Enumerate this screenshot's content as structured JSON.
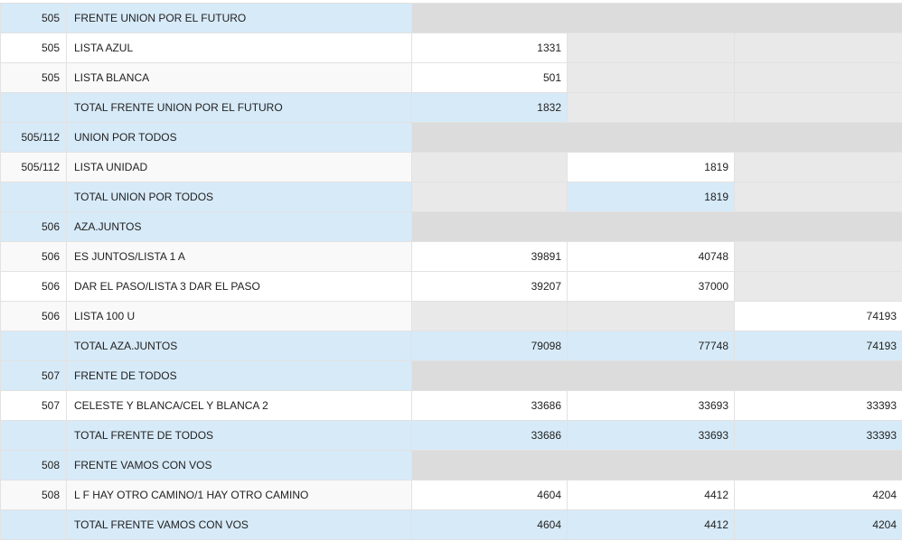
{
  "rows": [
    {
      "type": "header",
      "code": "505",
      "name": "FRENTE UNION POR EL FUTURO"
    },
    {
      "type": "list",
      "alt": false,
      "code": "505",
      "name": "LISTA AZUL",
      "v": [
        "1331",
        "",
        ""
      ],
      "bg": [
        "white",
        "grey",
        "grey"
      ]
    },
    {
      "type": "list",
      "alt": true,
      "code": "505",
      "name": "LISTA BLANCA",
      "v": [
        "501",
        "",
        ""
      ],
      "bg": [
        "white",
        "grey",
        "grey"
      ]
    },
    {
      "type": "total",
      "code": "",
      "name": "TOTAL FRENTE UNION POR EL FUTURO",
      "v": [
        "1832",
        "",
        ""
      ],
      "bg": [
        "blue",
        "grey",
        "grey"
      ]
    },
    {
      "type": "header",
      "code": "505/112",
      "name": "UNION POR TODOS"
    },
    {
      "type": "list",
      "alt": true,
      "code": "505/112",
      "name": "LISTA UNIDAD",
      "v": [
        "",
        "1819",
        ""
      ],
      "bg": [
        "grey",
        "white",
        "grey"
      ]
    },
    {
      "type": "total",
      "code": "",
      "name": "TOTAL UNION POR TODOS",
      "v": [
        "",
        "1819",
        ""
      ],
      "bg": [
        "grey",
        "blue",
        "grey"
      ]
    },
    {
      "type": "header",
      "code": "506",
      "name": "AZA.JUNTOS"
    },
    {
      "type": "list",
      "alt": true,
      "code": "506",
      "name": "ES JUNTOS/LISTA 1 A",
      "v": [
        "39891",
        "40748",
        ""
      ],
      "bg": [
        "white",
        "white",
        "grey"
      ]
    },
    {
      "type": "list",
      "alt": false,
      "code": "506",
      "name": "DAR EL PASO/LISTA 3 DAR EL PASO",
      "v": [
        "39207",
        "37000",
        ""
      ],
      "bg": [
        "white",
        "white",
        "grey"
      ]
    },
    {
      "type": "list",
      "alt": true,
      "code": "506",
      "name": "LISTA 100 U",
      "v": [
        "",
        "",
        "74193"
      ],
      "bg": [
        "grey",
        "grey",
        "white"
      ]
    },
    {
      "type": "total",
      "code": "",
      "name": "TOTAL AZA.JUNTOS",
      "v": [
        "79098",
        "77748",
        "74193"
      ],
      "bg": [
        "blue",
        "blue",
        "blue"
      ]
    },
    {
      "type": "header",
      "code": "507",
      "name": "FRENTE DE TODOS"
    },
    {
      "type": "list",
      "alt": false,
      "code": "507",
      "name": "CELESTE Y BLANCA/CEL Y BLANCA 2",
      "v": [
        "33686",
        "33693",
        "33393"
      ],
      "bg": [
        "white",
        "white",
        "white"
      ]
    },
    {
      "type": "total",
      "code": "",
      "name": "TOTAL FRENTE DE TODOS",
      "v": [
        "33686",
        "33693",
        "33393"
      ],
      "bg": [
        "blue",
        "blue",
        "blue"
      ]
    },
    {
      "type": "header",
      "code": "508",
      "name": "FRENTE VAMOS CON VOS"
    },
    {
      "type": "list",
      "alt": true,
      "code": "508",
      "name": "L F HAY OTRO CAMINO/1 HAY OTRO CAMINO",
      "v": [
        "4604",
        "4412",
        "4204"
      ],
      "bg": [
        "white",
        "white",
        "white"
      ]
    },
    {
      "type": "total",
      "code": "",
      "name": "TOTAL FRENTE VAMOS CON VOS",
      "v": [
        "4604",
        "4412",
        "4204"
      ],
      "bg": [
        "blue",
        "blue",
        "blue"
      ]
    }
  ]
}
